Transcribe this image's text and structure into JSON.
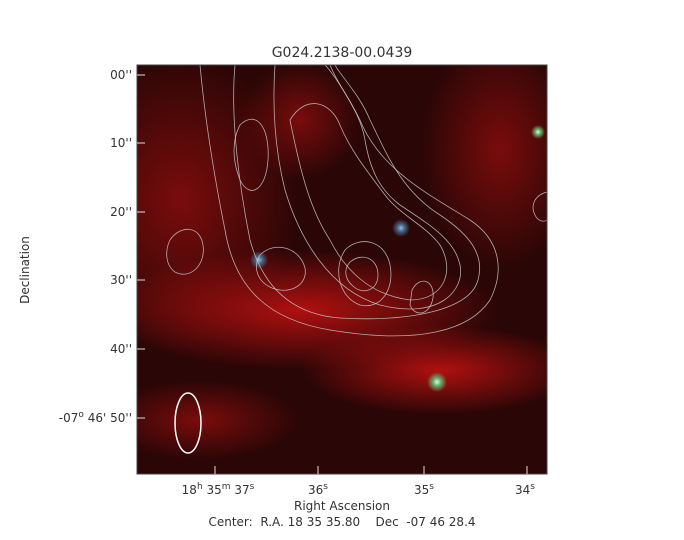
{
  "title": "G024.2138-00.0439",
  "y_axis": {
    "label": "Declination",
    "ticks": [
      [
        "00''"
      ],
      [
        "10''"
      ],
      [
        "20''"
      ],
      [
        "30''"
      ],
      [
        "40''"
      ],
      [
        "-07",
        "o",
        " 46' 50''"
      ]
    ]
  },
  "x_axis": {
    "label": "Right Ascension",
    "ticks": [
      [
        "18",
        "h",
        " 35",
        "m",
        " 37",
        "s"
      ],
      [
        "36",
        "s"
      ],
      [
        "35",
        "s"
      ],
      [
        "34",
        "s"
      ]
    ]
  },
  "footer": "Center:  R.A. 18 35 35.80    Dec  -07 46 28.4"
}
